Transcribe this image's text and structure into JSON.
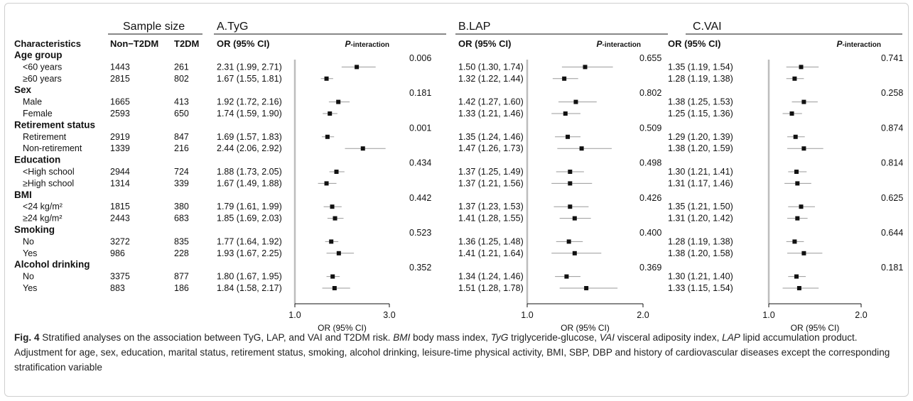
{
  "header": {
    "sample_size": "Sample size",
    "characteristics": "Characteristics",
    "non_t2dm": "Non−T2DM",
    "t2dm": "T2DM",
    "or_label": "OR (95% CI)",
    "p_interaction_prefix": "P",
    "p_interaction_suffix": "-interaction"
  },
  "rows": [
    {
      "type": "group",
      "label": "Age group",
      "p": [
        "0.006",
        "0.655",
        "0.741"
      ]
    },
    {
      "type": "sub",
      "label": "<60 years",
      "n_non": "1443",
      "n_t2dm": "261",
      "ci": [
        "2.31 (1.99, 2.71)",
        "1.50 (1.30, 1.74)",
        "1.35 (1.19, 1.54)"
      ]
    },
    {
      "type": "sub",
      "label": "≥60 years",
      "n_non": "2815",
      "n_t2dm": "802",
      "ci": [
        "1.67 (1.55, 1.81)",
        "1.32 (1.22, 1.44)",
        "1.28 (1.19, 1.38)"
      ]
    },
    {
      "type": "group",
      "label": "Sex",
      "p": [
        "0.181",
        "0.802",
        "0.258"
      ]
    },
    {
      "type": "sub",
      "label": "Male",
      "n_non": "1665",
      "n_t2dm": "413",
      "ci": [
        "1.92 (1.72, 2.16)",
        "1.42 (1.27, 1.60)",
        "1.38 (1.25, 1.53)"
      ]
    },
    {
      "type": "sub",
      "label": "Female",
      "n_non": "2593",
      "n_t2dm": "650",
      "ci": [
        "1.74 (1.59, 1.90)",
        "1.33 (1.21, 1.46)",
        "1.25 (1.15, 1.36)"
      ]
    },
    {
      "type": "group",
      "label": "Retirement status",
      "p": [
        "0.001",
        "0.509",
        "0.874"
      ]
    },
    {
      "type": "sub",
      "label": "Retirement",
      "n_non": "2919",
      "n_t2dm": "847",
      "ci": [
        "1.69 (1.57, 1.83)",
        "1.35 (1.24, 1.46)",
        "1.29 (1.20, 1.39)"
      ]
    },
    {
      "type": "sub",
      "label": "Non-retirement",
      "n_non": "1339",
      "n_t2dm": "216",
      "ci": [
        "2.44 (2.06, 2.92)",
        "1.47 (1.26, 1.73)",
        "1.38 (1.20, 1.59)"
      ]
    },
    {
      "type": "group",
      "label": "Education",
      "p": [
        "0.434",
        "0.498",
        "0.814"
      ]
    },
    {
      "type": "sub",
      "label": "<High school",
      "n_non": "2944",
      "n_t2dm": "724",
      "ci": [
        "1.88 (1.73, 2.05)",
        "1.37 (1.25, 1.49)",
        "1.30 (1.21, 1.41)"
      ]
    },
    {
      "type": "sub",
      "label": "≥High school",
      "n_non": "1314",
      "n_t2dm": "339",
      "ci": [
        "1.67 (1.49, 1.88)",
        "1.37 (1.21, 1.56)",
        "1.31 (1.17, 1.46)"
      ]
    },
    {
      "type": "group",
      "label": "BMI",
      "p": [
        "0.442",
        "0.426",
        "0.625"
      ]
    },
    {
      "type": "sub",
      "label": "<24 kg/m²",
      "n_non": "1815",
      "n_t2dm": "380",
      "ci": [
        "1.79 (1.61, 1.99)",
        "1.37 (1.23, 1.53)",
        "1.35 (1.21, 1.50)"
      ]
    },
    {
      "type": "sub",
      "label": "≥24 kg/m²",
      "n_non": "2443",
      "n_t2dm": "683",
      "ci": [
        "1.85 (1.69, 2.03)",
        "1.41 (1.28, 1.55)",
        "1.31 (1.20, 1.42)"
      ]
    },
    {
      "type": "group",
      "label": "Smoking",
      "p": [
        "0.523",
        "0.400",
        "0.644"
      ]
    },
    {
      "type": "sub",
      "label": "No",
      "n_non": "3272",
      "n_t2dm": "835",
      "ci": [
        "1.77 (1.64, 1.92)",
        "1.36 (1.25, 1.48)",
        "1.28 (1.19, 1.38)"
      ]
    },
    {
      "type": "sub",
      "label": "Yes",
      "n_non": "986",
      "n_t2dm": "228",
      "ci": [
        "1.93 (1.67, 2.25)",
        "1.41 (1.21, 1.64)",
        "1.38 (1.20, 1.58)"
      ]
    },
    {
      "type": "group",
      "label": "Alcohol drinking",
      "p": [
        "0.352",
        "0.369",
        "0.181"
      ]
    },
    {
      "type": "sub",
      "label": "No",
      "n_non": "3375",
      "n_t2dm": "877",
      "ci": [
        "1.80 (1.67, 1.95)",
        "1.34 (1.24, 1.46)",
        "1.30 (1.21, 1.40)"
      ]
    },
    {
      "type": "sub",
      "label": "Yes",
      "n_non": "883",
      "n_t2dm": "186",
      "ci": [
        "1.84 (1.58, 2.17)",
        "1.51 (1.28, 1.78)",
        "1.33 (1.15, 1.54)"
      ]
    }
  ],
  "chart_data": [
    {
      "type": "forest",
      "title": "A.TyG",
      "xlabel": "OR (95% CI)",
      "xlim": [
        1.0,
        3.0
      ],
      "ticks": [
        "1.0",
        "3.0"
      ],
      "points": [
        {
          "or": 2.31,
          "lo": 1.99,
          "hi": 2.71
        },
        {
          "or": 1.67,
          "lo": 1.55,
          "hi": 1.81
        },
        {
          "or": 1.92,
          "lo": 1.72,
          "hi": 2.16
        },
        {
          "or": 1.74,
          "lo": 1.59,
          "hi": 1.9
        },
        {
          "or": 1.69,
          "lo": 1.57,
          "hi": 1.83
        },
        {
          "or": 2.44,
          "lo": 2.06,
          "hi": 2.92
        },
        {
          "or": 1.88,
          "lo": 1.73,
          "hi": 2.05
        },
        {
          "or": 1.67,
          "lo": 1.49,
          "hi": 1.88
        },
        {
          "or": 1.79,
          "lo": 1.61,
          "hi": 1.99
        },
        {
          "or": 1.85,
          "lo": 1.69,
          "hi": 2.03
        },
        {
          "or": 1.77,
          "lo": 1.64,
          "hi": 1.92
        },
        {
          "or": 1.93,
          "lo": 1.67,
          "hi": 2.25
        },
        {
          "or": 1.8,
          "lo": 1.67,
          "hi": 1.95
        },
        {
          "or": 1.84,
          "lo": 1.58,
          "hi": 2.17
        }
      ]
    },
    {
      "type": "forest",
      "title": "B.LAP",
      "xlabel": "OR (95% CI)",
      "xlim": [
        1.0,
        2.0
      ],
      "ticks": [
        "1.0",
        "2.0"
      ],
      "points": [
        {
          "or": 1.5,
          "lo": 1.3,
          "hi": 1.74
        },
        {
          "or": 1.32,
          "lo": 1.22,
          "hi": 1.44
        },
        {
          "or": 1.42,
          "lo": 1.27,
          "hi": 1.6
        },
        {
          "or": 1.33,
          "lo": 1.21,
          "hi": 1.46
        },
        {
          "or": 1.35,
          "lo": 1.24,
          "hi": 1.46
        },
        {
          "or": 1.47,
          "lo": 1.26,
          "hi": 1.73
        },
        {
          "or": 1.37,
          "lo": 1.25,
          "hi": 1.49
        },
        {
          "or": 1.37,
          "lo": 1.21,
          "hi": 1.56
        },
        {
          "or": 1.37,
          "lo": 1.23,
          "hi": 1.53
        },
        {
          "or": 1.41,
          "lo": 1.28,
          "hi": 1.55
        },
        {
          "or": 1.36,
          "lo": 1.25,
          "hi": 1.48
        },
        {
          "or": 1.41,
          "lo": 1.21,
          "hi": 1.64
        },
        {
          "or": 1.34,
          "lo": 1.24,
          "hi": 1.46
        },
        {
          "or": 1.51,
          "lo": 1.28,
          "hi": 1.78
        }
      ]
    },
    {
      "type": "forest",
      "title": "C.VAI",
      "xlabel": "OR (95% CI)",
      "xlim": [
        1.0,
        2.0
      ],
      "ticks": [
        "1.0",
        "2.0"
      ],
      "points": [
        {
          "or": 1.35,
          "lo": 1.19,
          "hi": 1.54
        },
        {
          "or": 1.28,
          "lo": 1.19,
          "hi": 1.38
        },
        {
          "or": 1.38,
          "lo": 1.25,
          "hi": 1.53
        },
        {
          "or": 1.25,
          "lo": 1.15,
          "hi": 1.36
        },
        {
          "or": 1.29,
          "lo": 1.2,
          "hi": 1.39
        },
        {
          "or": 1.38,
          "lo": 1.2,
          "hi": 1.59
        },
        {
          "or": 1.3,
          "lo": 1.21,
          "hi": 1.41
        },
        {
          "or": 1.31,
          "lo": 1.17,
          "hi": 1.46
        },
        {
          "or": 1.35,
          "lo": 1.21,
          "hi": 1.5
        },
        {
          "or": 1.31,
          "lo": 1.2,
          "hi": 1.42
        },
        {
          "or": 1.28,
          "lo": 1.19,
          "hi": 1.38
        },
        {
          "or": 1.38,
          "lo": 1.2,
          "hi": 1.58
        },
        {
          "or": 1.3,
          "lo": 1.21,
          "hi": 1.4
        },
        {
          "or": 1.33,
          "lo": 1.15,
          "hi": 1.54
        }
      ]
    }
  ],
  "caption": {
    "fig_label": "Fig. 4",
    "s1": "  Stratified analyses on the association between TyG, LAP, and VAI and T2DM risk. ",
    "bmi_abbr": "BMI",
    "s2": " body mass index, ",
    "tyg_abbr": "TyG",
    "s3": " triglyceride-glucose, ",
    "vai_abbr": "VAI",
    "s4": " visceral adiposity index, ",
    "lap_abbr": "LAP",
    "s5": " lipid accumulation product. Adjustment for age, sex, education, marital status, retirement status, smoking, alcohol drinking, leisure-time physical activity, BMI, SBP, DBP and history of cardiovascular diseases except the corresponding stratification variable"
  }
}
